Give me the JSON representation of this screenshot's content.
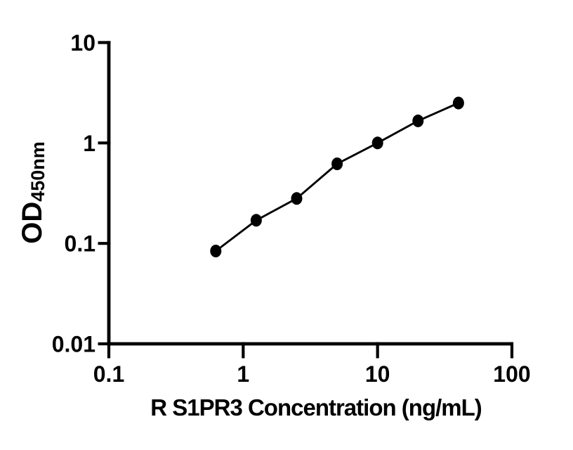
{
  "figure": {
    "background_color": "#ffffff",
    "foreground_color": "#000000"
  },
  "chart_data": {
    "type": "scatter",
    "xlabel": "R S1PR3 Concentration (ng/mL)",
    "ylabel_main": "OD",
    "ylabel_sub": "450nm",
    "x_scale": "log",
    "y_scale": "log",
    "xlim": [
      0.1,
      100
    ],
    "ylim": [
      0.01,
      10
    ],
    "x_tick_values": [
      0.1,
      1,
      10,
      100
    ],
    "x_tick_labels": [
      "0.1",
      "1",
      "10",
      "100"
    ],
    "y_tick_values": [
      0.01,
      0.1,
      1,
      10
    ],
    "y_tick_labels": [
      "0.01",
      "0.1",
      "1",
      "10"
    ],
    "grid": false,
    "legend": "none",
    "marker_style": "filled-circle",
    "line_style": "solid",
    "x": [
      0.625,
      1.25,
      2.5,
      5,
      10,
      20,
      40
    ],
    "y": [
      0.084,
      0.17,
      0.28,
      0.62,
      1.0,
      1.66,
      2.5
    ]
  }
}
